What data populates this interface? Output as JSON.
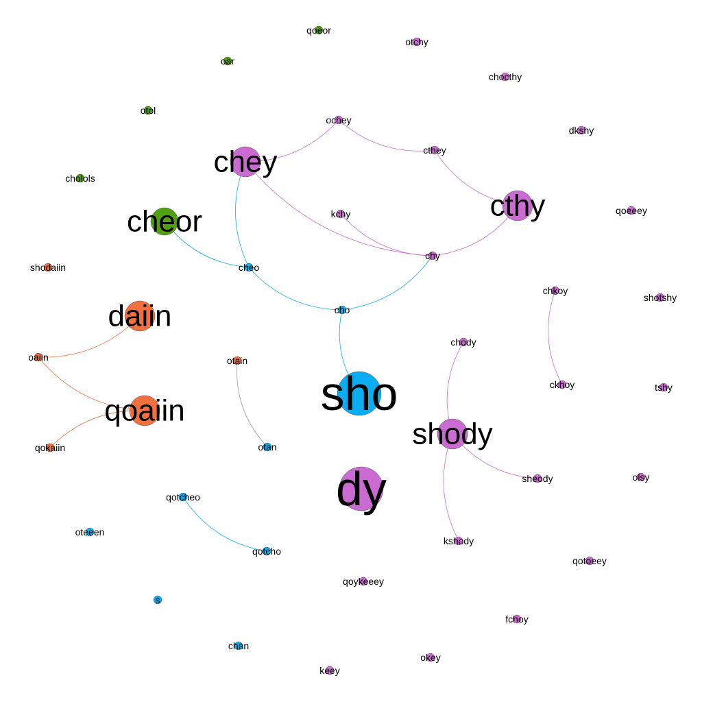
{
  "colors": {
    "purple": "#c96bd0",
    "blue": "#0aaef0",
    "orange": "#f07040",
    "green": "#50a010",
    "gray": "#999999"
  },
  "nodes": [
    {
      "id": "qoeor",
      "label": "qoeor",
      "group": "green",
      "weight": 1
    },
    {
      "id": "otchy",
      "label": "otchy",
      "group": "purple",
      "weight": 1
    },
    {
      "id": "oar",
      "label": "oar",
      "group": "green",
      "weight": 1
    },
    {
      "id": "chocthy",
      "label": "chocthy",
      "group": "purple",
      "weight": 1
    },
    {
      "id": "otol",
      "label": "otol",
      "group": "green",
      "weight": 1
    },
    {
      "id": "ochey",
      "label": "ochey",
      "group": "purple",
      "weight": 1
    },
    {
      "id": "dkshy",
      "label": "dkshy",
      "group": "purple",
      "weight": 1
    },
    {
      "id": "cthey",
      "label": "cthey",
      "group": "purple",
      "weight": 1
    },
    {
      "id": "chey",
      "label": "chey",
      "group": "purple",
      "weight": 5
    },
    {
      "id": "chol",
      "label": "cholols",
      "group": "green",
      "weight": 1
    },
    {
      "id": "cthy",
      "label": "cthy",
      "group": "purple",
      "weight": 5
    },
    {
      "id": "qoeeey",
      "label": "qoeeey",
      "group": "purple",
      "weight": 1
    },
    {
      "id": "cheor",
      "label": "cheor",
      "group": "green",
      "weight": 6
    },
    {
      "id": "kchy",
      "label": "kchy",
      "group": "purple",
      "weight": 1
    },
    {
      "id": "chy",
      "label": "chy",
      "group": "purple",
      "weight": 1
    },
    {
      "id": "cheo",
      "label": "cheo",
      "group": "blue",
      "weight": 1
    },
    {
      "id": "shodaiin",
      "label": "shodaiin",
      "group": "orange",
      "weight": 1
    },
    {
      "id": "chkoy",
      "label": "chkoy",
      "group": "purple",
      "weight": 1
    },
    {
      "id": "shotshy",
      "label": "shotshy",
      "group": "purple",
      "weight": 1
    },
    {
      "id": "cho",
      "label": "cho",
      "group": "blue",
      "weight": 1
    },
    {
      "id": "daiin",
      "label": "daiin",
      "group": "orange",
      "weight": 5
    },
    {
      "id": "chody",
      "label": "chody",
      "group": "purple",
      "weight": 1
    },
    {
      "id": "oaiin",
      "label": "oaiin",
      "group": "orange",
      "weight": 1
    },
    {
      "id": "otain",
      "label": "otain",
      "group": "orange",
      "weight": 1
    },
    {
      "id": "ckhoy",
      "label": "ckhoy",
      "group": "purple",
      "weight": 1
    },
    {
      "id": "tshy",
      "label": "tshy",
      "group": "purple",
      "weight": 1
    },
    {
      "id": "sho",
      "label": "sho",
      "group": "blue",
      "weight": 10
    },
    {
      "id": "qoaiin",
      "label": "qoaiin",
      "group": "orange",
      "weight": 5
    },
    {
      "id": "shody",
      "label": "shody",
      "group": "purple",
      "weight": 5
    },
    {
      "id": "qokaiin",
      "label": "qokaiin",
      "group": "orange",
      "weight": 1
    },
    {
      "id": "otan",
      "label": "otan",
      "group": "blue",
      "weight": 1
    },
    {
      "id": "sheody",
      "label": "sheody",
      "group": "purple",
      "weight": 1
    },
    {
      "id": "olsy",
      "label": "olsy",
      "group": "purple",
      "weight": 1
    },
    {
      "id": "dy",
      "label": "dy",
      "group": "purple",
      "weight": 10
    },
    {
      "id": "qotcheo",
      "label": "qotcheo",
      "group": "blue",
      "weight": 1
    },
    {
      "id": "oteeen",
      "label": "oteeen",
      "group": "blue",
      "weight": 1
    },
    {
      "id": "kshody",
      "label": "kshody",
      "group": "purple",
      "weight": 1
    },
    {
      "id": "qotcho",
      "label": "qotcho",
      "group": "blue",
      "weight": 1
    },
    {
      "id": "qotoeey",
      "label": "qotoeey",
      "group": "purple",
      "weight": 1
    },
    {
      "id": "qoykeeey",
      "label": "qoykeeey",
      "group": "purple",
      "weight": 1
    },
    {
      "id": "s",
      "label": "s",
      "group": "blue",
      "weight": 1
    },
    {
      "id": "fchoy",
      "label": "fchoy",
      "group": "purple",
      "weight": 1
    },
    {
      "id": "chan",
      "label": "chan",
      "group": "blue",
      "weight": 1
    },
    {
      "id": "okey",
      "label": "okey",
      "group": "purple",
      "weight": 1
    },
    {
      "id": "keey",
      "label": "keey",
      "group": "purple",
      "weight": 1
    }
  ],
  "edges": [
    {
      "source": "chey",
      "target": "ochey",
      "color": "purple"
    },
    {
      "source": "ochey",
      "target": "cthey",
      "color": "purple"
    },
    {
      "source": "cthey",
      "target": "cthy",
      "color": "purple"
    },
    {
      "source": "chey",
      "target": "chy",
      "color": "purple"
    },
    {
      "source": "kchy",
      "target": "chy",
      "color": "purple"
    },
    {
      "source": "chy",
      "target": "cthy",
      "color": "purple"
    },
    {
      "source": "chey",
      "target": "cheo",
      "color": "blue"
    },
    {
      "source": "cheor",
      "target": "cheo",
      "color": "blue"
    },
    {
      "source": "cheo",
      "target": "cho",
      "color": "blue"
    },
    {
      "source": "cho",
      "target": "chy",
      "color": "blue"
    },
    {
      "source": "cho",
      "target": "sho",
      "color": "blue"
    },
    {
      "source": "chody",
      "target": "shody",
      "color": "purple"
    },
    {
      "source": "shody",
      "target": "sheody",
      "color": "purple"
    },
    {
      "source": "shody",
      "target": "kshody",
      "color": "purple"
    },
    {
      "source": "chkoy",
      "target": "ckhoy",
      "color": "purple"
    },
    {
      "source": "oaiin",
      "target": "daiin",
      "color": "orange"
    },
    {
      "source": "oaiin",
      "target": "qoaiin",
      "color": "orange"
    },
    {
      "source": "qoaiin",
      "target": "qokaiin",
      "color": "orange"
    },
    {
      "source": "otain",
      "target": "otan",
      "color": "gray"
    },
    {
      "source": "qotcheo",
      "target": "qotcho",
      "color": "blue"
    }
  ]
}
